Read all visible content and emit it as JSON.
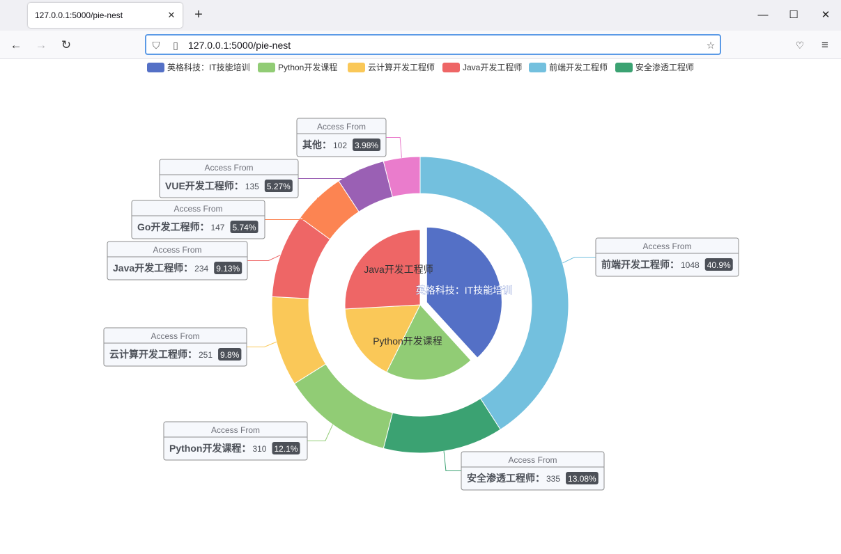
{
  "browser": {
    "tab_title": "127.0.0.1:5000/pie-nest",
    "url": "127.0.0.1:5000/pie-nest",
    "icons": [
      "close-icon",
      "plus-icon",
      "minimize-icon",
      "maximize-icon",
      "window-close-icon",
      "back-arrow-icon",
      "forward-arrow-icon",
      "reload-icon",
      "shield-icon",
      "page-icon",
      "star-icon",
      "pocket-icon",
      "hamburger-menu-icon"
    ]
  },
  "chart_data": {
    "type": "pie",
    "tooltip_title": "Access From",
    "legend": {
      "placement": "top",
      "items": [
        {
          "name": "英格科技：IT技能培训",
          "color": "#5470c6"
        },
        {
          "name": "Python开发课程",
          "color": "#91cc75"
        },
        {
          "name": "云计算开发工程师",
          "color": "#fac858"
        },
        {
          "name": "Java开发工程师",
          "color": "#ee6666"
        },
        {
          "name": "前端开发工程师",
          "color": "#73c0de"
        },
        {
          "name": "安全渗透工程师",
          "color": "#3ba272"
        }
      ]
    },
    "inner": {
      "name": "inner",
      "labels_inside": true,
      "slices": [
        {
          "name": "英格科技：IT技能培训",
          "value": 1548,
          "color": "#5470c6",
          "selected": true
        },
        {
          "name": "Python开发课程",
          "value": 775,
          "color": "#91cc75"
        },
        {
          "name": "云计算开发工程师",
          "value": 679,
          "color": "#fac858"
        },
        {
          "name": "Java开发工程师",
          "value": 1048,
          "color": "#ee6666"
        }
      ]
    },
    "outer": {
      "name": "outer",
      "slices": [
        {
          "name": "前端开发工程师",
          "value": 1048,
          "percent": "40.9%",
          "color": "#73c0de"
        },
        {
          "name": "安全渗透工程师",
          "value": 335,
          "percent": "13.08%",
          "color": "#3ba272"
        },
        {
          "name": "Python开发课程",
          "value": 310,
          "percent": "12.1%",
          "color": "#91cc75"
        },
        {
          "name": "云计算开发工程师",
          "value": 251,
          "percent": "9.8%",
          "color": "#fac858"
        },
        {
          "name": "Java开发工程师",
          "value": 234,
          "percent": "9.13%",
          "color": "#ee6666"
        },
        {
          "name": "Go开发工程师",
          "value": 147,
          "percent": "5.74%",
          "color": "#fc8452"
        },
        {
          "name": "VUE开发工程师",
          "value": 135,
          "percent": "5.27%",
          "color": "#9a60b4"
        },
        {
          "name": "其他",
          "value": 102,
          "percent": "3.98%",
          "color": "#ea7ccc"
        }
      ]
    }
  }
}
